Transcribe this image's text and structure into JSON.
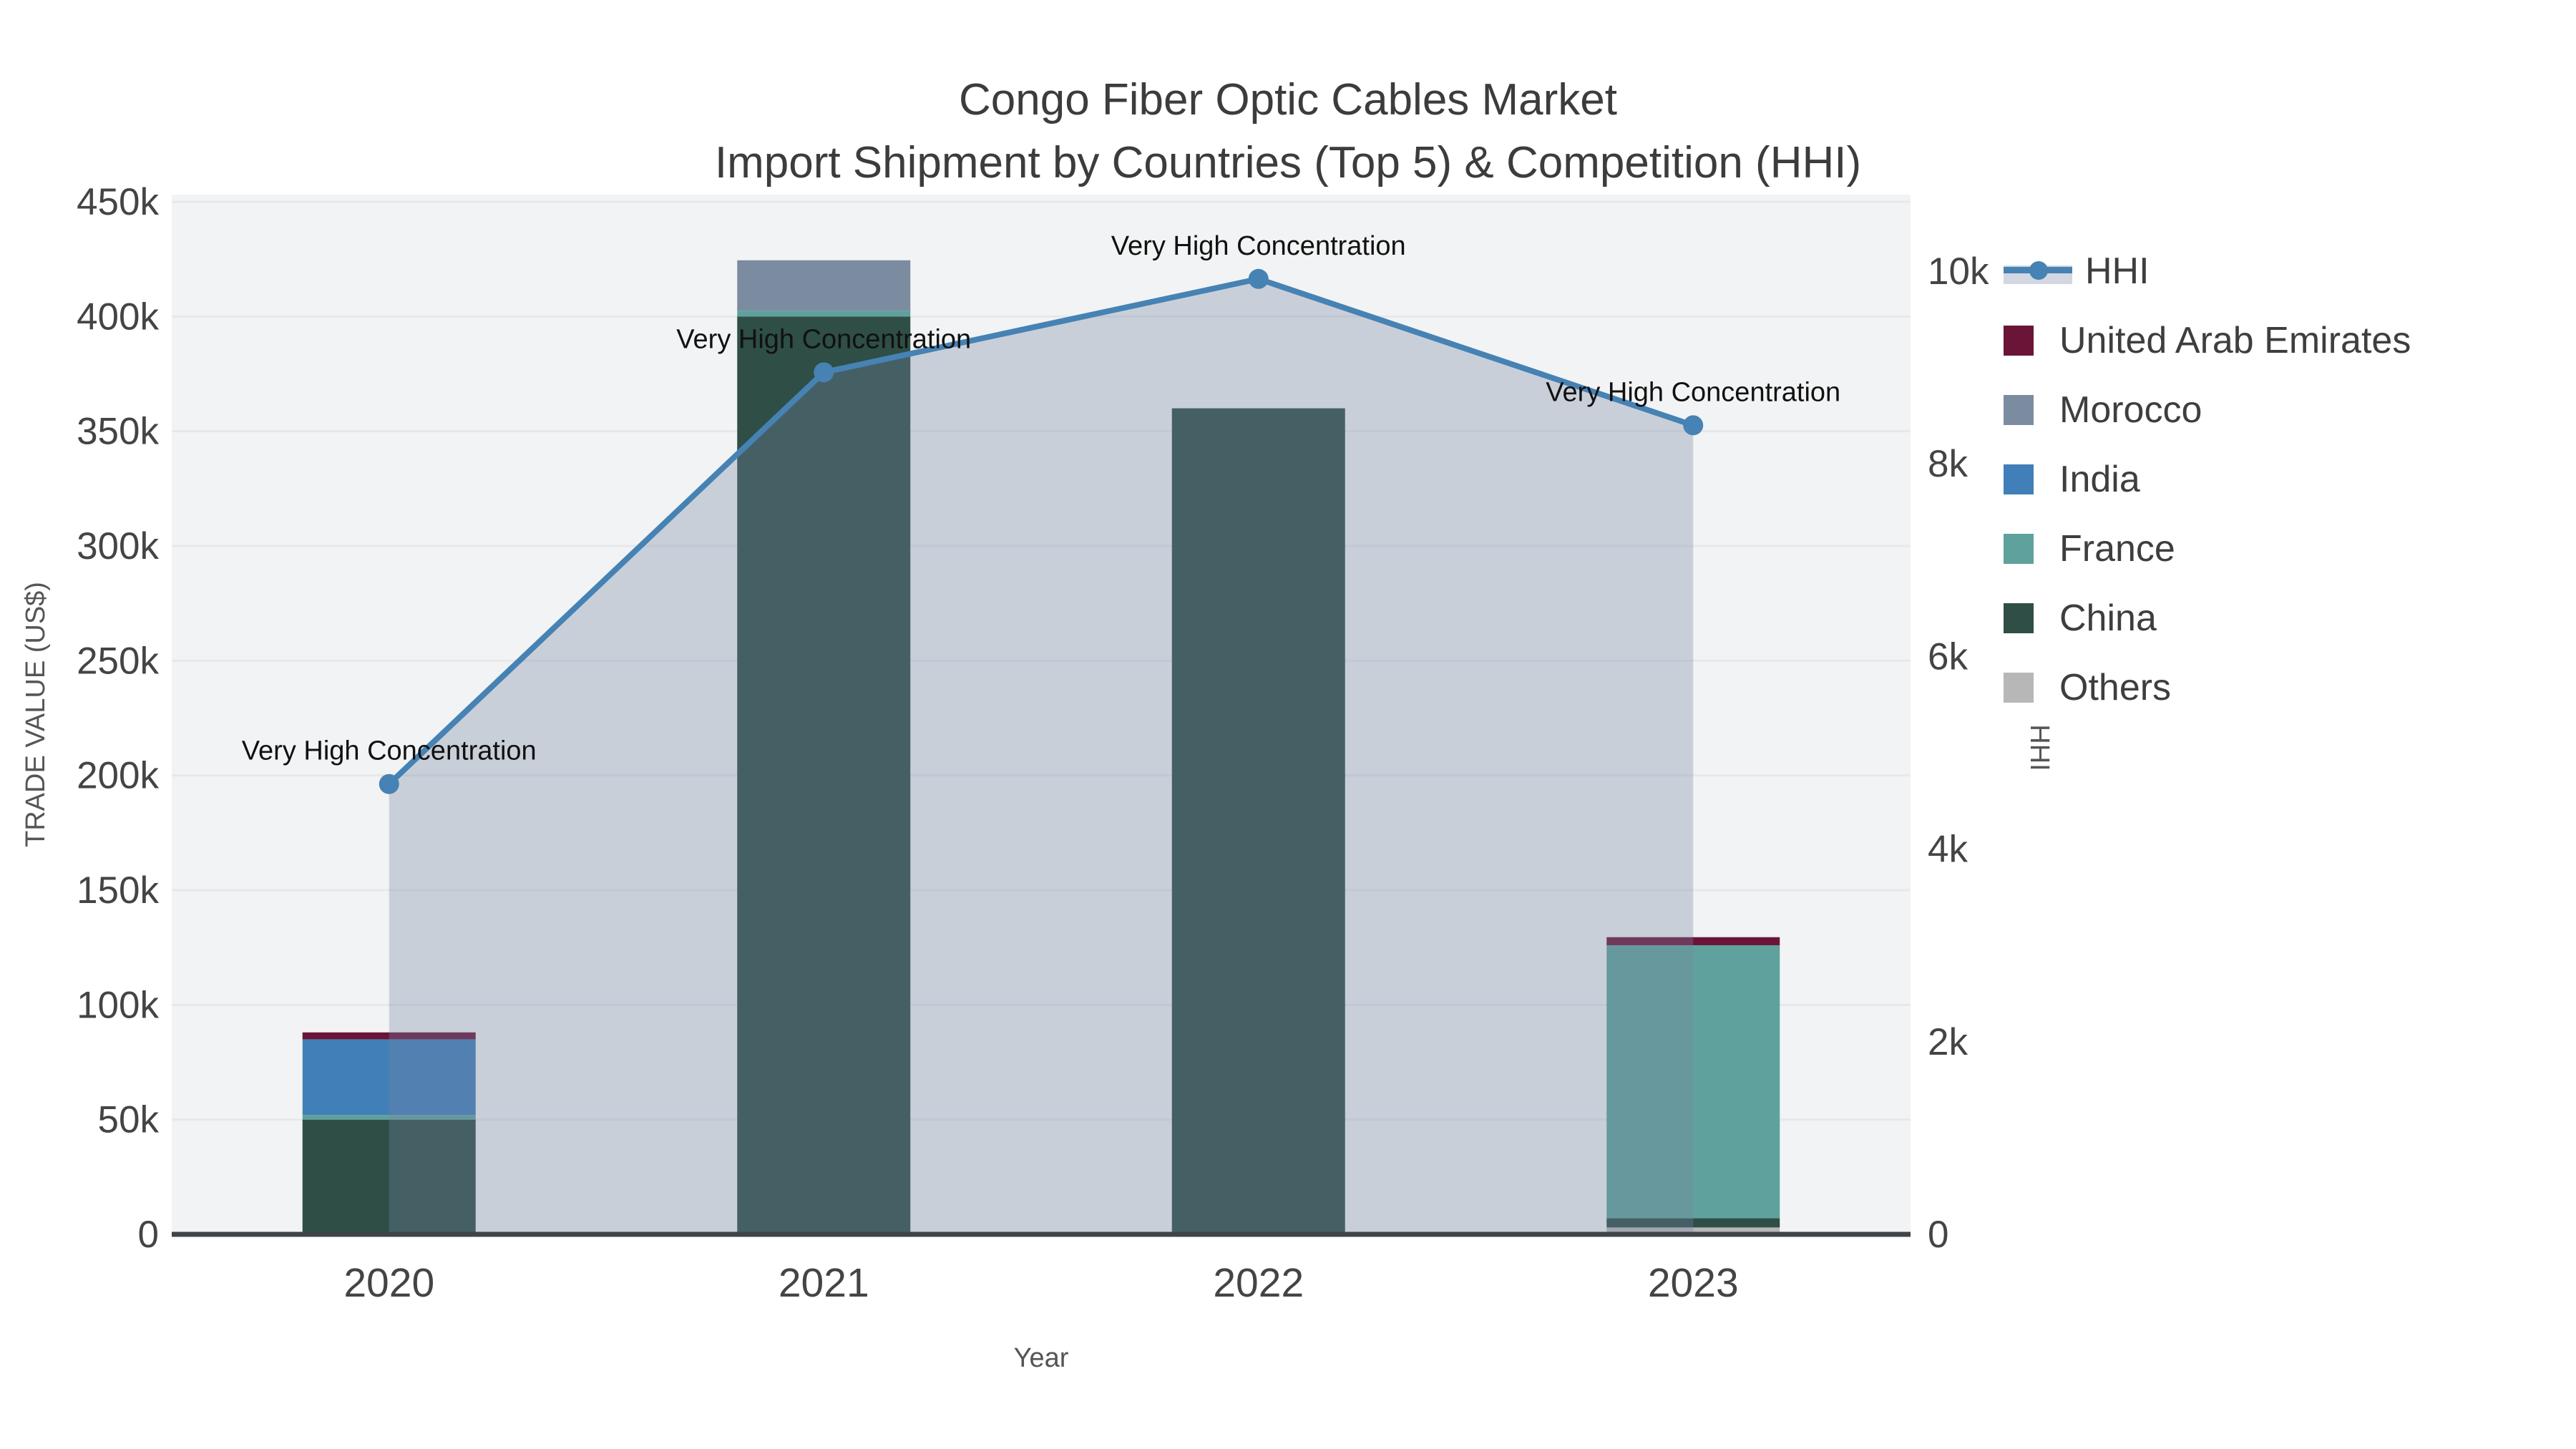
{
  "title": {
    "line1": "Congo Fiber Optic Cables Market",
    "line2": "Import Shipment by Countries (Top 5) & Competition (HHI)"
  },
  "colors": {
    "hhi_line": "#4682B4",
    "hhi_area": "rgba(119,134,163,0.33)",
    "plot_background": "#F2F3F4",
    "gridline": "#E6E8EA",
    "axis_line": "#3F4447",
    "tick_text": "#444444",
    "axis_title_text": "#555555",
    "annotation_text": "#111111",
    "united_arab_emirates": "#6A1438",
    "morocco": "#7B8CA0",
    "india": "#417FB8",
    "france": "#5FA19C",
    "china": "#2E4E46",
    "others": "#B7B7B7"
  },
  "chart_data": {
    "type": "combo-stacked-bar-line",
    "x": [
      "2020",
      "2021",
      "2022",
      "2023"
    ],
    "xlabel": "Year",
    "yaxis_left": {
      "title": "TRADE VALUE (US$)",
      "ticks": [
        0,
        50000,
        100000,
        150000,
        200000,
        250000,
        300000,
        350000,
        400000,
        450000
      ],
      "tick_labels": [
        "0",
        "50k",
        "100k",
        "150k",
        "200k",
        "250k",
        "300k",
        "350k",
        "400k",
        "450k"
      ],
      "range": [
        0,
        450000
      ]
    },
    "yaxis_right": {
      "title": "HHI",
      "ticks": [
        0,
        2000,
        4000,
        6000,
        8000,
        10000
      ],
      "tick_labels": [
        "0",
        "2k",
        "4k",
        "6k",
        "8k",
        "10k"
      ],
      "range": [
        0,
        10000
      ]
    },
    "bar_stack_order_bottom_to_top": [
      "Others",
      "China",
      "France",
      "India",
      "Morocco",
      "United Arab Emirates"
    ],
    "bar_series": [
      {
        "name": "Others",
        "color_key": "others",
        "values": [
          0,
          0,
          0,
          3000
        ]
      },
      {
        "name": "China",
        "color_key": "china",
        "values": [
          50000,
          400000,
          360000,
          4000
        ]
      },
      {
        "name": "France",
        "color_key": "france",
        "values": [
          2000,
          2500,
          0,
          119000
        ]
      },
      {
        "name": "India",
        "color_key": "india",
        "values": [
          33000,
          0,
          0,
          0
        ]
      },
      {
        "name": "Morocco",
        "color_key": "morocco",
        "values": [
          0,
          22000,
          0,
          0
        ]
      },
      {
        "name": "United Arab Emirates",
        "color_key": "united_arab_emirates",
        "values": [
          3000,
          0,
          0,
          3500
        ]
      }
    ],
    "line_series": {
      "name": "HHI",
      "values": [
        4675,
        8950,
        9920,
        8400
      ],
      "annotations": [
        "Very High Concentration",
        "Very High Concentration",
        "Very High Concentration",
        "Very High Concentration"
      ]
    },
    "legend_position": "right",
    "grid": "horizontal"
  },
  "legend": {
    "items": [
      {
        "label": "HHI",
        "type": "line",
        "color_key": "hhi_line"
      },
      {
        "label": "United Arab Emirates",
        "type": "square",
        "color_key": "united_arab_emirates"
      },
      {
        "label": "Morocco",
        "type": "square",
        "color_key": "morocco"
      },
      {
        "label": "India",
        "type": "square",
        "color_key": "india"
      },
      {
        "label": "France",
        "type": "square",
        "color_key": "france"
      },
      {
        "label": "China",
        "type": "square",
        "color_key": "china"
      },
      {
        "label": "Others",
        "type": "square",
        "color_key": "others"
      }
    ]
  }
}
